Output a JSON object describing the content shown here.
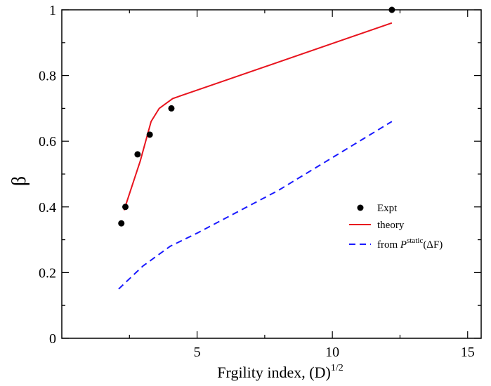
{
  "chart_data": {
    "type": "line",
    "title": "",
    "xlabel": "Frgility index, (D)",
    "xlabel_sup": "1/2",
    "ylabel": "β",
    "xlim": [
      0,
      15.5
    ],
    "ylim": [
      0,
      1
    ],
    "xticks": [
      5,
      10,
      15
    ],
    "yticks": [
      0,
      0.2,
      0.4,
      0.6,
      0.8,
      1
    ],
    "xtick_labels": [
      "5",
      "10",
      "15"
    ],
    "ytick_labels": [
      "0",
      "0.2",
      "0.4",
      "0.6",
      "0.8",
      "1"
    ],
    "grid": false,
    "legend_position": "right",
    "series": [
      {
        "name": "Expt",
        "kind": "scatter",
        "color": "#000000",
        "points": [
          [
            2.2,
            0.35
          ],
          [
            2.35,
            0.4
          ],
          [
            2.8,
            0.56
          ],
          [
            3.25,
            0.62
          ],
          [
            4.05,
            0.7
          ],
          [
            12.2,
            1.0
          ]
        ]
      },
      {
        "name": "theory",
        "kind": "line",
        "style": "solid",
        "color": "#e8141e",
        "points": [
          [
            2.3,
            0.39
          ],
          [
            2.9,
            0.54
          ],
          [
            3.3,
            0.66
          ],
          [
            3.6,
            0.7
          ],
          [
            4.1,
            0.73
          ],
          [
            12.2,
            0.96
          ]
        ]
      },
      {
        "name": "from P^static(ΔF)",
        "kind": "line",
        "style": "dashed",
        "color": "#1a1aff",
        "points": [
          [
            2.1,
            0.15
          ],
          [
            3.0,
            0.22
          ],
          [
            4.0,
            0.28
          ],
          [
            5.0,
            0.32
          ],
          [
            8.0,
            0.45
          ],
          [
            12.2,
            0.66
          ]
        ]
      }
    ],
    "legend": {
      "expt_label": "Expt",
      "theory_label": "theory",
      "static_prefix": "from ",
      "static_var": "P",
      "static_sup": "static",
      "static_suffix": "(ΔF)"
    }
  }
}
